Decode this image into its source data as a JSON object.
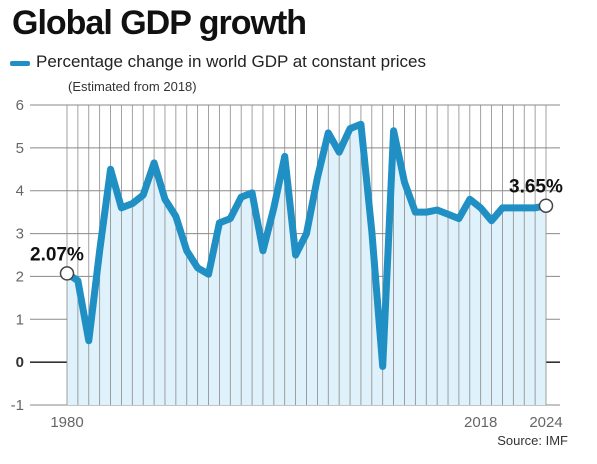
{
  "header": {
    "title": "Global GDP growth",
    "legend_label": "Percentage change in world GDP at constant prices",
    "subtitle": "(Estimated from 2018)",
    "source": "Source: IMF"
  },
  "colors": {
    "line": "#1f8fc4",
    "area": "#dff1fa",
    "grid": "#8a8a8a",
    "zero": "#333333"
  },
  "chart_data": {
    "type": "area",
    "title": "Global GDP growth",
    "subtitle": "(Estimated from 2018)",
    "xlabel": "",
    "ylabel": "",
    "ylim": [
      -1,
      6
    ],
    "xlim": [
      1980,
      2024
    ],
    "yticks": [
      "-1",
      "0",
      "1",
      "2",
      "3",
      "4",
      "5",
      "6"
    ],
    "xtick_labels": [
      {
        "x": 1980,
        "label": "1980"
      },
      {
        "x": 2018,
        "label": "2018"
      },
      {
        "x": 2024,
        "label": "2024"
      }
    ],
    "grid": true,
    "legend_position": "top-left",
    "series": [
      {
        "name": "Percentage change in world GDP at constant prices",
        "x": [
          1980,
          1981,
          1982,
          1983,
          1984,
          1985,
          1986,
          1987,
          1988,
          1989,
          1990,
          1991,
          1992,
          1993,
          1994,
          1995,
          1996,
          1997,
          1998,
          1999,
          2000,
          2001,
          2002,
          2003,
          2004,
          2005,
          2006,
          2007,
          2008,
          2009,
          2010,
          2011,
          2012,
          2013,
          2014,
          2015,
          2016,
          2017,
          2018,
          2019,
          2020,
          2021,
          2022,
          2023,
          2024
        ],
        "values": [
          2.07,
          1.9,
          0.5,
          2.6,
          4.5,
          3.6,
          3.7,
          3.9,
          4.65,
          3.8,
          3.4,
          2.6,
          2.2,
          2.05,
          3.25,
          3.35,
          3.85,
          3.95,
          2.6,
          3.6,
          4.8,
          2.5,
          3.0,
          4.3,
          5.35,
          4.9,
          5.45,
          5.55,
          3.05,
          -0.1,
          5.4,
          4.2,
          3.5,
          3.5,
          3.55,
          3.45,
          3.35,
          3.8,
          3.6,
          3.3,
          3.6,
          3.6,
          3.6,
          3.6,
          3.65
        ]
      }
    ],
    "annotations": [
      {
        "x": 1980,
        "y": 2.07,
        "label": "2.07%"
      },
      {
        "x": 2024,
        "y": 3.65,
        "label": "3.65%"
      }
    ]
  }
}
